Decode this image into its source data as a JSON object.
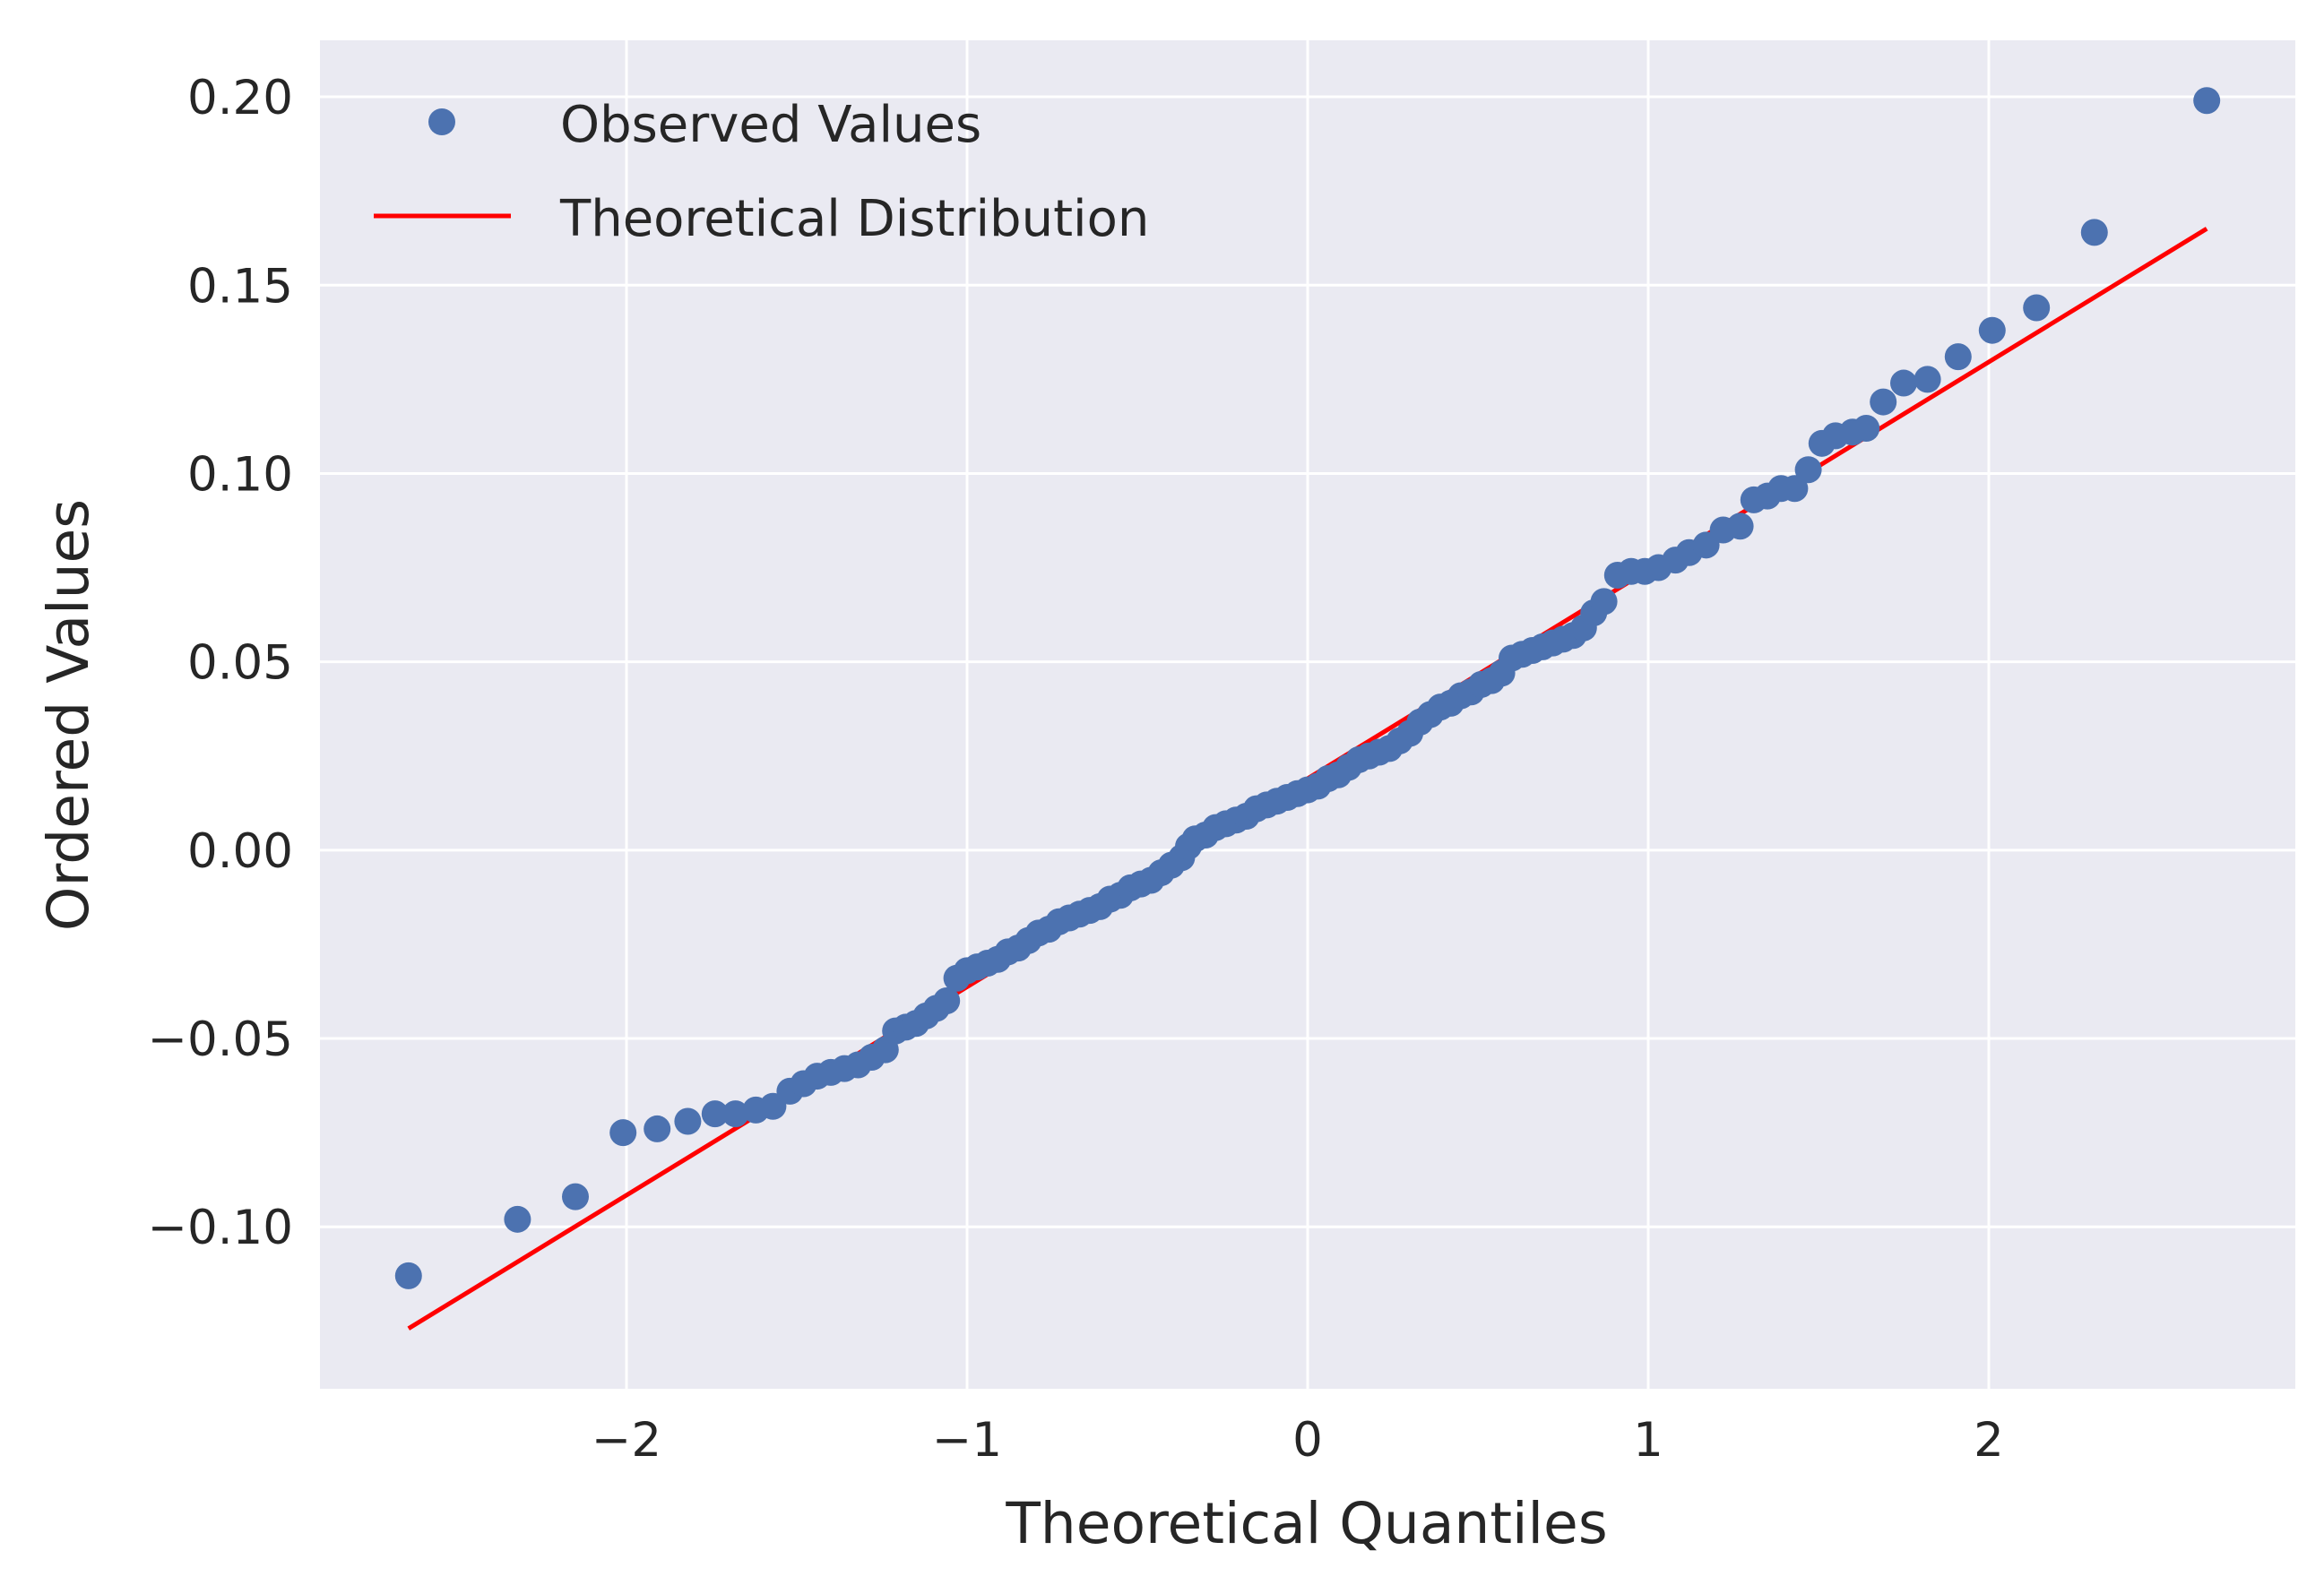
{
  "colors": {
    "background": "#ffffff",
    "plot_background": "#eaeaf2",
    "grid": "#ffffff",
    "points": "#4c72b0",
    "line": "#ff0000",
    "text": "#262626"
  },
  "legend": {
    "observed_label": "Observed Values",
    "theoretical_label": "Theoretical Distribution",
    "location": "top-left"
  },
  "chart_data": {
    "type": "scatter",
    "title": "",
    "xlabel": "Theoretical Quantiles",
    "ylabel": "Ordered Values",
    "xlim": [
      -2.9,
      2.9
    ],
    "ylim": [
      -0.143,
      0.215
    ],
    "grid": true,
    "x_ticks": [
      -2,
      -1,
      0,
      1,
      2
    ],
    "x_tick_labels": [
      "−2",
      "−1",
      "0",
      "1",
      "2"
    ],
    "y_ticks": [
      -0.1,
      -0.05,
      0.0,
      0.05,
      0.1,
      0.15,
      0.2
    ],
    "y_tick_labels": [
      "−0.10",
      "−0.05",
      "0.00",
      "0.05",
      "0.10",
      "0.15",
      "0.20"
    ],
    "series": [
      {
        "name": "Observed Values",
        "kind": "scatter",
        "points": [
          [
            -2.64,
            -0.113
          ],
          [
            -2.32,
            -0.098
          ],
          [
            -2.15,
            -0.092
          ],
          [
            -2.01,
            -0.075
          ],
          [
            -1.91,
            -0.074
          ],
          [
            -1.82,
            -0.072
          ],
          [
            -1.74,
            -0.07
          ],
          [
            -1.68,
            -0.07
          ],
          [
            -1.62,
            -0.069
          ],
          [
            -1.57,
            -0.068
          ],
          [
            -1.52,
            -0.064
          ],
          [
            -1.48,
            -0.062
          ],
          [
            -1.44,
            -0.06
          ],
          [
            -1.4,
            -0.059
          ],
          [
            -1.36,
            -0.058
          ],
          [
            -1.32,
            -0.057
          ],
          [
            -1.28,
            -0.055
          ],
          [
            -1.24,
            -0.053
          ],
          [
            -1.21,
            -0.048
          ],
          [
            -1.18,
            -0.047
          ],
          [
            -1.15,
            -0.046
          ],
          [
            -1.12,
            -0.044
          ],
          [
            -1.09,
            -0.042
          ],
          [
            -1.06,
            -0.04
          ],
          [
            -1.03,
            -0.034
          ],
          [
            -1.0,
            -0.032
          ],
          [
            -0.97,
            -0.031
          ],
          [
            -0.94,
            -0.03
          ],
          [
            -0.91,
            -0.029
          ],
          [
            -0.88,
            -0.027
          ],
          [
            -0.85,
            -0.026
          ],
          [
            -0.82,
            -0.024
          ],
          [
            -0.79,
            -0.022
          ],
          [
            -0.76,
            -0.021
          ],
          [
            -0.73,
            -0.019
          ],
          [
            -0.7,
            -0.018
          ],
          [
            -0.67,
            -0.017
          ],
          [
            -0.64,
            -0.016
          ],
          [
            -0.61,
            -0.015
          ],
          [
            -0.58,
            -0.013
          ],
          [
            -0.55,
            -0.012
          ],
          [
            -0.52,
            -0.01
          ],
          [
            -0.49,
            -0.009
          ],
          [
            -0.46,
            -0.008
          ],
          [
            -0.43,
            -0.006
          ],
          [
            -0.4,
            -0.004
          ],
          [
            -0.37,
            -0.002
          ],
          [
            -0.35,
            0.001
          ],
          [
            -0.33,
            0.003
          ],
          [
            -0.3,
            0.004
          ],
          [
            -0.27,
            0.006
          ],
          [
            -0.24,
            0.007
          ],
          [
            -0.21,
            0.008
          ],
          [
            -0.18,
            0.009
          ],
          [
            -0.15,
            0.011
          ],
          [
            -0.12,
            0.012
          ],
          [
            -0.09,
            0.013
          ],
          [
            -0.06,
            0.014
          ],
          [
            -0.03,
            0.015
          ],
          [
            0.0,
            0.016
          ],
          [
            0.03,
            0.017
          ],
          [
            0.06,
            0.019
          ],
          [
            0.09,
            0.02
          ],
          [
            0.12,
            0.022
          ],
          [
            0.15,
            0.024
          ],
          [
            0.18,
            0.025
          ],
          [
            0.21,
            0.026
          ],
          [
            0.24,
            0.027
          ],
          [
            0.27,
            0.029
          ],
          [
            0.3,
            0.031
          ],
          [
            0.33,
            0.034
          ],
          [
            0.36,
            0.036
          ],
          [
            0.39,
            0.038
          ],
          [
            0.42,
            0.039
          ],
          [
            0.45,
            0.041
          ],
          [
            0.48,
            0.042
          ],
          [
            0.51,
            0.044
          ],
          [
            0.54,
            0.045
          ],
          [
            0.57,
            0.047
          ],
          [
            0.6,
            0.051
          ],
          [
            0.63,
            0.052
          ],
          [
            0.66,
            0.053
          ],
          [
            0.69,
            0.054
          ],
          [
            0.72,
            0.055
          ],
          [
            0.75,
            0.056
          ],
          [
            0.78,
            0.057
          ],
          [
            0.81,
            0.059
          ],
          [
            0.84,
            0.063
          ],
          [
            0.87,
            0.066
          ],
          [
            0.91,
            0.073
          ],
          [
            0.95,
            0.074
          ],
          [
            0.99,
            0.074
          ],
          [
            1.03,
            0.075
          ],
          [
            1.08,
            0.077
          ],
          [
            1.12,
            0.079
          ],
          [
            1.17,
            0.081
          ],
          [
            1.22,
            0.085
          ],
          [
            1.27,
            0.086
          ],
          [
            1.31,
            0.093
          ],
          [
            1.35,
            0.094
          ],
          [
            1.39,
            0.096
          ],
          [
            1.43,
            0.096
          ],
          [
            1.47,
            0.101
          ],
          [
            1.51,
            0.108
          ],
          [
            1.55,
            0.11
          ],
          [
            1.6,
            0.111
          ],
          [
            1.64,
            0.112
          ],
          [
            1.69,
            0.119
          ],
          [
            1.75,
            0.124
          ],
          [
            1.82,
            0.125
          ],
          [
            1.91,
            0.131
          ],
          [
            2.01,
            0.138
          ],
          [
            2.14,
            0.144
          ],
          [
            2.31,
            0.164
          ],
          [
            2.64,
            0.199
          ]
        ]
      },
      {
        "name": "Theoretical Distribution",
        "kind": "line",
        "points": [
          [
            -2.64,
            -0.127
          ],
          [
            2.64,
            0.165
          ]
        ]
      }
    ]
  }
}
